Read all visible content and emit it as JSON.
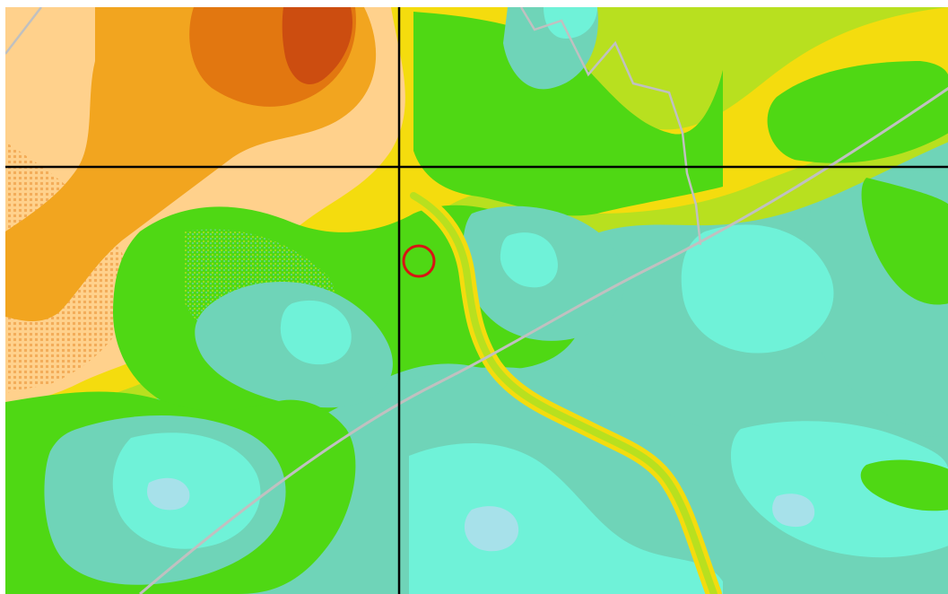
{
  "map": {
    "kind": "raster-heat-map",
    "text_labels": [],
    "legend": null,
    "colors": {
      "red": "#cc4d10",
      "dark_orange": "#e27710",
      "orange": "#f2a51f",
      "peach": "#ffd18c",
      "yellow": "#f4dc0e",
      "lime": "#b8e01f",
      "green": "#4fd814",
      "teal_gray": "#6fd4b8",
      "aqua": "#6ff2d8",
      "light_blue": "#a7e1ea",
      "boundary_line": "#c0c0c0",
      "grid_line": "#000000",
      "marker_ring": "#d81414"
    },
    "overlays": {
      "crosshair": "grid-lines",
      "boundaries": [
        "boundary-diagonal",
        "boundary-county",
        "boundary-upper-left"
      ],
      "marker": "location-marker-circle"
    }
  }
}
